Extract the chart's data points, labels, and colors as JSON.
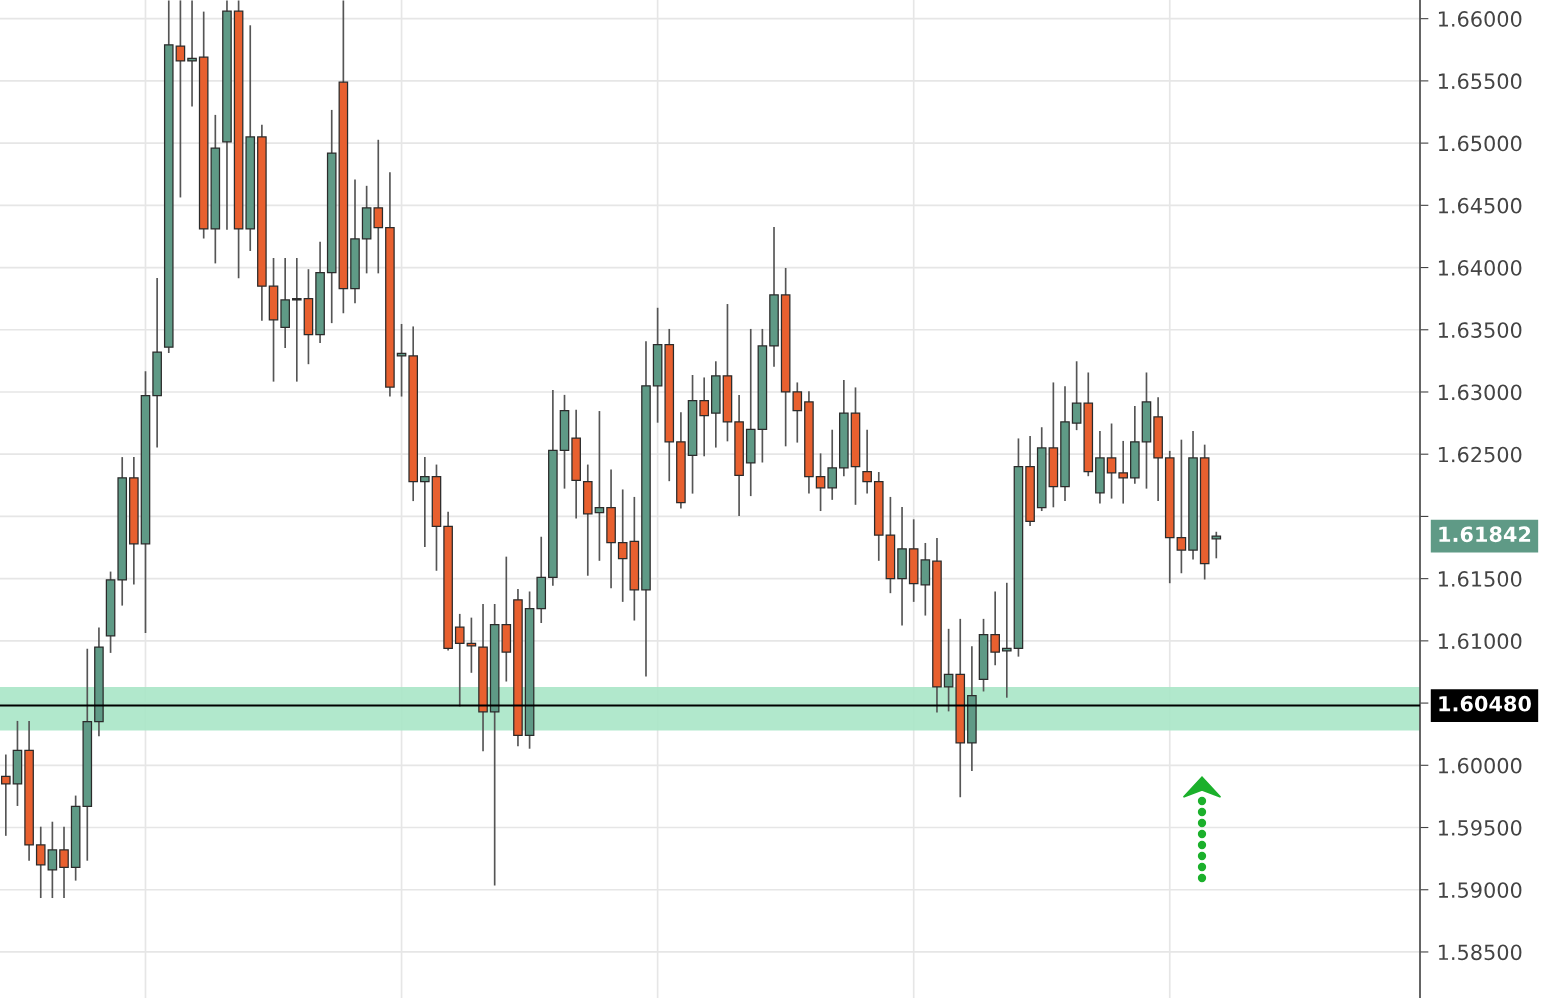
{
  "chart_data": {
    "type": "candlestick",
    "categories": [
      null,
      null,
      null,
      null,
      null,
      null,
      null,
      null,
      null,
      null,
      null,
      null,
      null,
      null,
      null,
      null,
      null,
      null,
      null,
      null,
      null,
      null,
      null,
      null,
      null,
      null,
      null,
      null,
      null,
      null,
      null,
      null,
      null,
      null,
      null,
      null,
      null,
      null,
      null,
      null,
      null,
      null,
      null,
      null,
      null,
      null,
      null,
      null,
      null,
      null,
      null,
      null,
      null,
      null,
      null,
      null,
      null,
      null,
      null,
      null,
      null,
      null,
      null,
      null,
      null,
      null,
      null,
      null,
      null,
      null,
      null,
      null,
      null,
      null,
      null,
      null,
      null,
      null,
      null,
      null,
      null,
      null,
      null,
      null,
      null,
      null,
      null,
      null,
      null,
      null,
      null,
      null,
      null,
      null,
      null,
      null,
      null,
      null,
      null,
      null,
      null,
      null,
      null,
      null,
      null,
      null,
      null,
      null,
      null,
      null,
      null,
      null,
      null,
      null,
      null,
      null,
      null,
      null,
      null,
      null,
      null,
      null
    ],
    "ohlc": [
      [
        1.5991,
        1.6008,
        1.5944,
        1.5985
      ],
      [
        1.5985,
        1.6035,
        1.5968,
        1.6012
      ],
      [
        1.6012,
        1.6035,
        1.5924,
        1.5936
      ],
      [
        1.5936,
        1.595,
        1.5894,
        1.592
      ],
      [
        1.5916,
        1.5954,
        1.5894,
        1.5932
      ],
      [
        1.5932,
        1.595,
        1.5894,
        1.5918
      ],
      [
        1.5918,
        1.5975,
        1.5908,
        1.5967
      ],
      [
        1.5967,
        1.6093,
        1.5924,
        1.6035
      ],
      [
        1.6035,
        1.611,
        1.6024,
        1.6095
      ],
      [
        1.6104,
        1.6155,
        1.6091,
        1.6149
      ],
      [
        1.6149,
        1.6247,
        1.6129,
        1.6231
      ],
      [
        1.6231,
        1.6247,
        1.6146,
        1.6178
      ],
      [
        1.6178,
        1.6316,
        1.6107,
        1.6297
      ],
      [
        1.6297,
        1.6391,
        1.6256,
        1.6332
      ],
      [
        1.6336,
        1.6614,
        1.6332,
        1.6579
      ],
      [
        1.6578,
        1.6614,
        1.6457,
        1.6566
      ],
      [
        1.6566,
        1.6614,
        1.653,
        1.6568
      ],
      [
        1.6569,
        1.6605,
        1.6424,
        1.6431
      ],
      [
        1.6431,
        1.6522,
        1.6404,
        1.6496
      ],
      [
        1.6501,
        1.6614,
        1.6431,
        1.6606
      ],
      [
        1.6606,
        1.6614,
        1.6392,
        1.6431
      ],
      [
        1.6431,
        1.6594,
        1.6414,
        1.6505
      ],
      [
        1.6505,
        1.6514,
        1.6358,
        1.6385
      ],
      [
        1.6385,
        1.6407,
        1.6309,
        1.6358
      ],
      [
        1.6352,
        1.6407,
        1.6336,
        1.6374
      ],
      [
        1.6374,
        1.6407,
        1.6309,
        1.6375
      ],
      [
        1.6375,
        1.6398,
        1.6323,
        1.6346
      ],
      [
        1.6346,
        1.642,
        1.634,
        1.6396
      ],
      [
        1.6396,
        1.6526,
        1.6356,
        1.6492
      ],
      [
        1.6549,
        1.6614,
        1.6364,
        1.6383
      ],
      [
        1.6383,
        1.647,
        1.6372,
        1.6423
      ],
      [
        1.6423,
        1.6465,
        1.6396,
        1.6448
      ],
      [
        1.6448,
        1.6502,
        1.6396,
        1.6432
      ],
      [
        1.6432,
        1.6476,
        1.6297,
        1.6304
      ],
      [
        1.6329,
        1.6354,
        1.6297,
        1.6331
      ],
      [
        1.6329,
        1.6352,
        1.6213,
        1.6228
      ],
      [
        1.6228,
        1.6247,
        1.6176,
        1.6232
      ],
      [
        1.6232,
        1.6241,
        1.6157,
        1.6192
      ],
      [
        1.6192,
        1.6203,
        1.6093,
        1.6094
      ],
      [
        1.6111,
        1.6121,
        1.6048,
        1.6098
      ],
      [
        1.6098,
        1.6118,
        1.6075,
        1.6096
      ],
      [
        1.6095,
        1.6129,
        1.6012,
        1.6043
      ],
      [
        1.6043,
        1.6129,
        1.5904,
        1.6113
      ],
      [
        1.6113,
        1.6167,
        1.6068,
        1.6091
      ],
      [
        1.6133,
        1.6141,
        1.6016,
        1.6024
      ],
      [
        1.6024,
        1.6139,
        1.6014,
        1.6126
      ],
      [
        1.6126,
        1.6183,
        1.6115,
        1.6151
      ],
      [
        1.6151,
        1.6301,
        1.6145,
        1.6253
      ],
      [
        1.6253,
        1.6297,
        1.6223,
        1.6285
      ],
      [
        1.6263,
        1.6285,
        1.6199,
        1.6229
      ],
      [
        1.6228,
        1.6241,
        1.6153,
        1.6202
      ],
      [
        1.6203,
        1.6284,
        1.6165,
        1.6207
      ],
      [
        1.6207,
        1.6237,
        1.6143,
        1.6179
      ],
      [
        1.6179,
        1.6221,
        1.6132,
        1.6166
      ],
      [
        1.618,
        1.6215,
        1.6117,
        1.6141
      ],
      [
        1.6141,
        1.634,
        1.6072,
        1.6305
      ],
      [
        1.6305,
        1.6367,
        1.6276,
        1.6338
      ],
      [
        1.6338,
        1.635,
        1.6229,
        1.626
      ],
      [
        1.626,
        1.6283,
        1.6207,
        1.6211
      ],
      [
        1.6249,
        1.6313,
        1.6219,
        1.6293
      ],
      [
        1.6293,
        1.6311,
        1.6249,
        1.6281
      ],
      [
        1.6283,
        1.6324,
        1.6256,
        1.6313
      ],
      [
        1.6313,
        1.637,
        1.6261,
        1.6276
      ],
      [
        1.6276,
        1.6297,
        1.6201,
        1.6233
      ],
      [
        1.6243,
        1.635,
        1.6217,
        1.627
      ],
      [
        1.627,
        1.635,
        1.6244,
        1.6337
      ],
      [
        1.6337,
        1.6432,
        1.6321,
        1.6378
      ],
      [
        1.6378,
        1.6399,
        1.6257,
        1.63
      ],
      [
        1.63,
        1.6307,
        1.626,
        1.6285
      ],
      [
        1.6292,
        1.63,
        1.6219,
        1.6232
      ],
      [
        1.6232,
        1.625,
        1.6205,
        1.6223
      ],
      [
        1.6223,
        1.6269,
        1.6214,
        1.6239
      ],
      [
        1.6239,
        1.6309,
        1.6233,
        1.6283
      ],
      [
        1.6283,
        1.6303,
        1.621,
        1.624
      ],
      [
        1.6236,
        1.6269,
        1.6219,
        1.6228
      ],
      [
        1.6228,
        1.6235,
        1.6165,
        1.6185
      ],
      [
        1.6185,
        1.6215,
        1.6139,
        1.615
      ],
      [
        1.615,
        1.6207,
        1.6113,
        1.6174
      ],
      [
        1.6174,
        1.6197,
        1.6132,
        1.6146
      ],
      [
        1.6145,
        1.6178,
        1.6121,
        1.6165
      ],
      [
        1.6164,
        1.6182,
        1.6043,
        1.6063
      ],
      [
        1.6063,
        1.6109,
        1.6044,
        1.6073
      ],
      [
        1.6073,
        1.6117,
        1.5975,
        1.6018
      ],
      [
        1.6018,
        1.6095,
        1.5996,
        1.6056
      ],
      [
        1.6069,
        1.6117,
        1.606,
        1.6105
      ],
      [
        1.6105,
        1.6139,
        1.6081,
        1.6091
      ],
      [
        1.6092,
        1.6146,
        1.6055,
        1.6094
      ],
      [
        1.6094,
        1.6262,
        1.6088,
        1.624
      ],
      [
        1.624,
        1.6264,
        1.6193,
        1.6196
      ],
      [
        1.6207,
        1.6271,
        1.6205,
        1.6255
      ],
      [
        1.6255,
        1.6307,
        1.6208,
        1.6224
      ],
      [
        1.6224,
        1.6304,
        1.6213,
        1.6276
      ],
      [
        1.6275,
        1.6324,
        1.627,
        1.6291
      ],
      [
        1.6291,
        1.6315,
        1.6233,
        1.6236
      ],
      [
        1.6219,
        1.6268,
        1.6211,
        1.6247
      ],
      [
        1.6247,
        1.6274,
        1.6215,
        1.6235
      ],
      [
        1.6235,
        1.626,
        1.6211,
        1.6231
      ],
      [
        1.6231,
        1.6288,
        1.6227,
        1.626
      ],
      [
        1.626,
        1.6315,
        1.6223,
        1.6292
      ],
      [
        1.628,
        1.6295,
        1.6213,
        1.6247
      ],
      [
        1.6247,
        1.6252,
        1.6147,
        1.6183
      ],
      [
        1.6183,
        1.6261,
        1.6155,
        1.6173
      ],
      [
        1.6173,
        1.6268,
        1.6166,
        1.6247
      ],
      [
        1.6247,
        1.6257,
        1.615,
        1.6162
      ],
      [
        1.6182,
        1.6187,
        1.6167,
        1.61842
      ],
      null,
      null,
      null,
      null,
      null,
      null,
      null,
      null,
      null,
      null,
      null,
      null,
      null,
      null,
      null,
      null,
      null
    ],
    "colors": [
      "#e8602f",
      "#5f9a86",
      "#e8602f",
      "#e8602f",
      "#5f9a86",
      "#e8602f",
      "#5f9a86",
      "#5f9a86",
      "#5f9a86",
      "#5f9a86",
      "#5f9a86",
      "#e8602f",
      "#5f9a86",
      "#5f9a86",
      "#5f9a86",
      "#e8602f",
      "#5f9a86",
      "#e8602f",
      "#5f9a86",
      "#5f9a86",
      "#e8602f",
      "#5f9a86",
      "#e8602f",
      "#e8602f",
      "#5f9a86",
      "#5f9a86",
      "#e8602f",
      "#5f9a86",
      "#5f9a86",
      "#e8602f",
      "#5f9a86",
      "#5f9a86",
      "#e8602f",
      "#e8602f",
      "#5f9a86",
      "#e8602f",
      "#5f9a86",
      "#e8602f",
      "#e8602f",
      "#e8602f",
      "#e8602f",
      "#e8602f",
      "#5f9a86",
      "#e8602f",
      "#e8602f",
      "#5f9a86",
      "#5f9a86",
      "#5f9a86",
      "#5f9a86",
      "#e8602f",
      "#e8602f",
      "#5f9a86",
      "#e8602f",
      "#e8602f",
      "#e8602f",
      "#5f9a86",
      "#5f9a86",
      "#e8602f",
      "#e8602f",
      "#5f9a86",
      "#e8602f",
      "#5f9a86",
      "#e8602f",
      "#e8602f",
      "#5f9a86",
      "#5f9a86",
      "#5f9a86",
      "#e8602f",
      "#e8602f",
      "#e8602f",
      "#e8602f",
      "#5f9a86",
      "#5f9a86",
      "#e8602f",
      "#e8602f",
      "#e8602f",
      "#e8602f",
      "#5f9a86",
      "#e8602f",
      "#5f9a86",
      "#e8602f",
      "#5f9a86",
      "#e8602f",
      "#5f9a86",
      "#5f9a86",
      "#e8602f",
      "#5f9a86",
      "#5f9a86",
      "#e8602f",
      "#5f9a86",
      "#e8602f",
      "#5f9a86",
      "#5f9a86",
      "#e8602f",
      "#5f9a86",
      "#e8602f",
      "#e8602f",
      "#5f9a86",
      "#5f9a86",
      "#e8602f",
      "#e8602f",
      "#e8602f",
      "#5f9a86",
      "#e8602f",
      "#5f9a86",
      null,
      null,
      null,
      null,
      null,
      null,
      null,
      null,
      null,
      null,
      null,
      null,
      null,
      null,
      null,
      null,
      null
    ],
    "ylim": [
      1.5813,
      1.6615
    ],
    "yticks": [
      {
        "value": 1.585,
        "label": "1.58500"
      },
      {
        "value": 1.59,
        "label": "1.59000"
      },
      {
        "value": 1.595,
        "label": "1.59500"
      },
      {
        "value": 1.6,
        "label": "1.60000"
      },
      {
        "value": 1.605,
        "label": null
      },
      {
        "value": 1.61,
        "label": "1.61000"
      },
      {
        "value": 1.615,
        "label": "1.61500"
      },
      {
        "value": 1.62,
        "label": null
      },
      {
        "value": 1.625,
        "label": "1.62500"
      },
      {
        "value": 1.63,
        "label": "1.63000"
      },
      {
        "value": 1.635,
        "label": "1.63500"
      },
      {
        "value": 1.64,
        "label": "1.64000"
      },
      {
        "value": 1.645,
        "label": "1.64500"
      },
      {
        "value": 1.65,
        "label": "1.65000"
      },
      {
        "value": 1.655,
        "label": "1.65500"
      },
      {
        "value": 1.66,
        "label": "1.66000"
      }
    ],
    "grid": true,
    "ref_lines": [
      {
        "axis": "y",
        "value": 1.6048,
        "label": "1.60480",
        "color": "#000000"
      }
    ],
    "bands": [
      {
        "axis": "y",
        "from": 1.6028,
        "to": 1.6063,
        "color": "#a8e6c6"
      }
    ],
    "annotations": [
      "1.61842"
    ]
  }
}
